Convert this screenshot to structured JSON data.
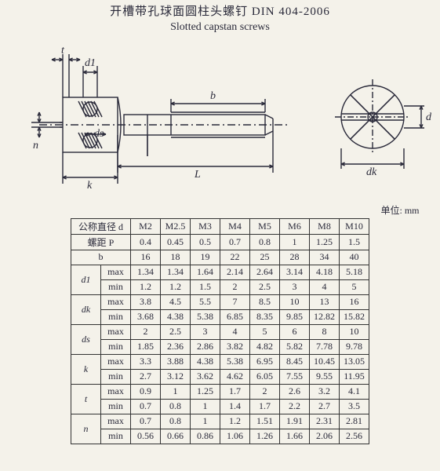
{
  "title_cn": "开槽带孔球面圆柱头螺钉 DIN 404-2006",
  "title_en": "Slotted capstan screws",
  "unit_label": "单位:  mm",
  "sizes": [
    "M2",
    "M2.5",
    "M3",
    "M4",
    "M5",
    "M6",
    "M8",
    "M10"
  ],
  "header_diameter": "公称直径  d",
  "rows": [
    {
      "label": "螺距  P",
      "sub": "",
      "vals": [
        "0.4",
        "0.45",
        "0.5",
        "0.7",
        "0.8",
        "1",
        "1.25",
        "1.5"
      ]
    },
    {
      "label": "b",
      "sub": "",
      "vals": [
        "16",
        "18",
        "19",
        "22",
        "25",
        "28",
        "34",
        "40"
      ]
    }
  ],
  "groups": [
    {
      "label": "d1",
      "max": [
        "1.34",
        "1.34",
        "1.64",
        "2.14",
        "2.64",
        "3.14",
        "4.18",
        "5.18"
      ],
      "min": [
        "1.2",
        "1.2",
        "1.5",
        "2",
        "2.5",
        "3",
        "4",
        "5"
      ]
    },
    {
      "label": "dk",
      "max": [
        "3.8",
        "4.5",
        "5.5",
        "7",
        "8.5",
        "10",
        "13",
        "16"
      ],
      "min": [
        "3.68",
        "4.38",
        "5.38",
        "6.85",
        "8.35",
        "9.85",
        "12.82",
        "15.82"
      ]
    },
    {
      "label": "ds",
      "max": [
        "2",
        "2.5",
        "3",
        "4",
        "5",
        "6",
        "8",
        "10"
      ],
      "min": [
        "1.85",
        "2.36",
        "2.86",
        "3.82",
        "4.82",
        "5.82",
        "7.78",
        "9.78"
      ]
    },
    {
      "label": "k",
      "max": [
        "3.3",
        "3.88",
        "4.38",
        "5.38",
        "6.95",
        "8.45",
        "10.45",
        "13.05"
      ],
      "min": [
        "2.7",
        "3.12",
        "3.62",
        "4.62",
        "6.05",
        "7.55",
        "9.55",
        "11.95"
      ]
    },
    {
      "label": "t",
      "max": [
        "0.9",
        "1",
        "1.25",
        "1.7",
        "2",
        "2.6",
        "3.2",
        "4.1"
      ],
      "min": [
        "0.7",
        "0.8",
        "1",
        "1.4",
        "1.7",
        "2.2",
        "2.7",
        "3.5"
      ]
    },
    {
      "label": "n",
      "max": [
        "0.7",
        "0.8",
        "1",
        "1.2",
        "1.51",
        "1.91",
        "2.31",
        "2.81"
      ],
      "min": [
        "0.56",
        "0.66",
        "0.86",
        "1.06",
        "1.26",
        "1.66",
        "2.06",
        "2.56"
      ]
    }
  ],
  "labels": {
    "max": "max",
    "min": "min",
    "t": "t",
    "d1": "d1",
    "n": "n",
    "ds": "ds",
    "k": "k",
    "L": "L",
    "b": "b",
    "d": "d",
    "dk": "dk"
  },
  "diagram": {
    "stroke": "#2a2a3a",
    "stroke_width": 1.4,
    "hatch_gap": 6
  }
}
